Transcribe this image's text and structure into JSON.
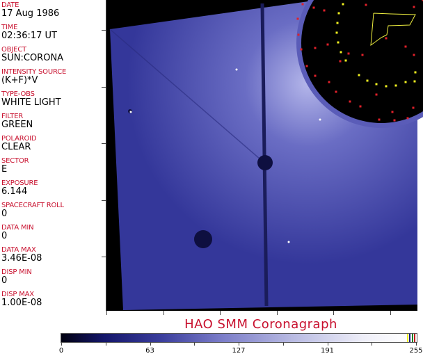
{
  "fields": [
    {
      "label": "DATE",
      "value": "17 Aug 1986"
    },
    {
      "label": "TIME",
      "value": "02:36:17 UT"
    },
    {
      "label": "OBJECT",
      "value": "SUN:CORONA"
    },
    {
      "label": "INTENSITY SOURCE",
      "value": "(K+F)*V"
    },
    {
      "label": "TYPE-OBS",
      "value": "WHITE LIGHT"
    },
    {
      "label": "FILTER",
      "value": "GREEN"
    },
    {
      "label": "POLAROID",
      "value": "CLEAR"
    },
    {
      "label": "SECTOR",
      "value": "E"
    },
    {
      "label": "EXPOSURE",
      "value": "6.144"
    },
    {
      "label": "SPACECRAFT ROLL",
      "value": "0"
    },
    {
      "label": "DATA MIN",
      "value": "0"
    },
    {
      "label": "DATA MAX",
      "value": "3.46E-08"
    },
    {
      "label": "DISP MIN",
      "value": "0"
    },
    {
      "label": "DISP MAX",
      "value": "1.00E-08"
    }
  ],
  "title": "HAO   SMM  Coronagraph",
  "colorbar": {
    "ticks": [
      "0",
      "63",
      "127",
      "191",
      "255"
    ],
    "colors": {
      "low": "#000010",
      "mid": "#7a7cc8",
      "high": "#ffffff"
    }
  },
  "colors": {
    "label": "#c8102e",
    "image_blue": "#3e40a8",
    "overlay_red": "#e0202a",
    "overlay_yellow": "#f0f020"
  }
}
